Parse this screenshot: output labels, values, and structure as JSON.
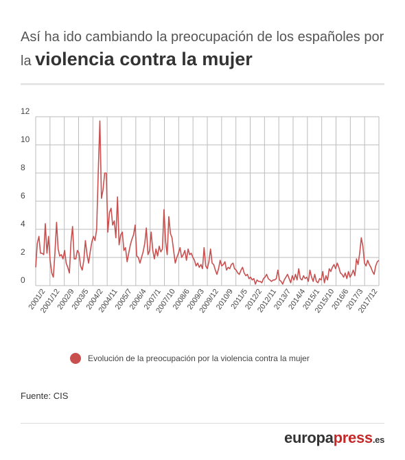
{
  "header": {
    "title_line1": "Así ha ido cambiando la preocupación de los españoles por",
    "title_prefix": "la",
    "title_bold": "violencia contra la mujer"
  },
  "legend": {
    "label": "Evolución de la preocupación por la violencia contra la mujer"
  },
  "source": "Fuente: CIS",
  "brand": {
    "part1": "europa",
    "part2": "press",
    "part3": ".es"
  },
  "colors": {
    "series": "#c94f4f",
    "grid": "#bbbbbb",
    "brand_red": "#c62828"
  },
  "chart_data": {
    "type": "line",
    "title": "Así ha ido cambiando la preocupación de los españoles por la violencia contra la mujer",
    "xlabel": "",
    "ylabel": "",
    "ylim": [
      0,
      12
    ],
    "yticks": [
      0,
      2,
      4,
      6,
      8,
      10,
      12
    ],
    "grid": true,
    "legend_position": "bottom",
    "x_start": "2001/2",
    "x_end": "2017/12",
    "xtick_labels": [
      "2001/2",
      "2001/12",
      "2002/9",
      "2003/5",
      "2004/2",
      "2004/11",
      "2005/7",
      "2006/4",
      "2007/1",
      "2007/10",
      "2008/6",
      "2009/3",
      "2009/12",
      "2010/9",
      "2011/5",
      "2012/2",
      "2012/11",
      "2013/7",
      "2014/4",
      "2015/1",
      "2015/10",
      "2016/6",
      "2017/3",
      "2017/12"
    ],
    "series": [
      {
        "name": "Evolución de la preocupación por la violencia contra la mujer",
        "values": [
          1.3,
          3,
          3.5,
          2.3,
          2.3,
          2.2,
          4.4,
          2.3,
          3.5,
          1.8,
          0.9,
          0.6,
          2.3,
          4.5,
          2.6,
          2.1,
          2.2,
          1.9,
          2.5,
          1.6,
          1.3,
          0.9,
          3.1,
          4.2,
          1.9,
          1.9,
          2.5,
          2.3,
          1.4,
          1.1,
          1.8,
          3.2,
          2.2,
          1.6,
          2.4,
          3.1,
          3.5,
          3.2,
          4,
          8,
          11.7,
          6.2,
          6.8,
          8,
          8,
          3.8,
          5.2,
          5.5,
          4.3,
          4.6,
          3.4,
          6.3,
          2.9,
          3.6,
          3.8,
          2.5,
          2.7,
          1.7,
          2.3,
          2.9,
          3.3,
          3.6,
          4.3,
          2.1,
          2,
          1.6,
          2,
          2.4,
          3,
          4.1,
          2.2,
          2.5,
          3.8,
          2.5,
          1.9,
          2.6,
          2.1,
          2.8,
          2.4,
          2.6,
          5.4,
          3.1,
          2.2,
          4.9,
          3.7,
          3.4,
          2.5,
          1.6,
          2,
          2.3,
          2.7,
          2,
          2.2,
          2.5,
          1.8,
          2.6,
          2.2,
          2.3,
          2,
          1.8,
          1.4,
          1.6,
          1.3,
          1.5,
          1.2,
          2.7,
          1.4,
          1.2,
          1.7,
          2.6,
          1.6,
          1.5,
          1.1,
          0.8,
          1.2,
          1.8,
          1.4,
          1.5,
          1.7,
          1.1,
          1.3,
          1.2,
          1.5,
          1.6,
          1.2,
          1.1,
          0.9,
          0.8,
          1.1,
          1.3,
          0.9,
          0.7,
          0.8,
          0.5,
          0.6,
          0.4,
          0.5,
          0.1,
          0.4,
          0.3,
          0.3,
          0.2,
          0.5,
          0.6,
          0.8,
          0.5,
          0.4,
          0.3,
          0.4,
          0.4,
          0.5,
          1.1,
          0.4,
          0.3,
          0.1,
          0.4,
          0.6,
          0.8,
          0.5,
          0.2,
          0.7,
          0.4,
          0.8,
          0.4,
          1.2,
          0.5,
          0.4,
          0.7,
          0.5,
          0.6,
          0.3,
          1.1,
          0.6,
          0.3,
          0.8,
          0.3,
          0.2,
          0.5,
          0.4,
          1,
          0.2,
          0.7,
          0.4,
          1.2,
          1,
          1.3,
          1.5,
          1.2,
          1.6,
          1.3,
          0.9,
          0.8,
          0.6,
          0.9,
          0.5,
          1,
          0.6,
          0.8,
          1.1,
          0.7,
          1.9,
          1.5,
          2.3,
          3.4,
          2.8,
          1.6,
          1.4,
          1.8,
          1.5,
          1.3,
          1,
          0.8,
          1.4,
          1.7,
          1.8
        ]
      }
    ]
  }
}
